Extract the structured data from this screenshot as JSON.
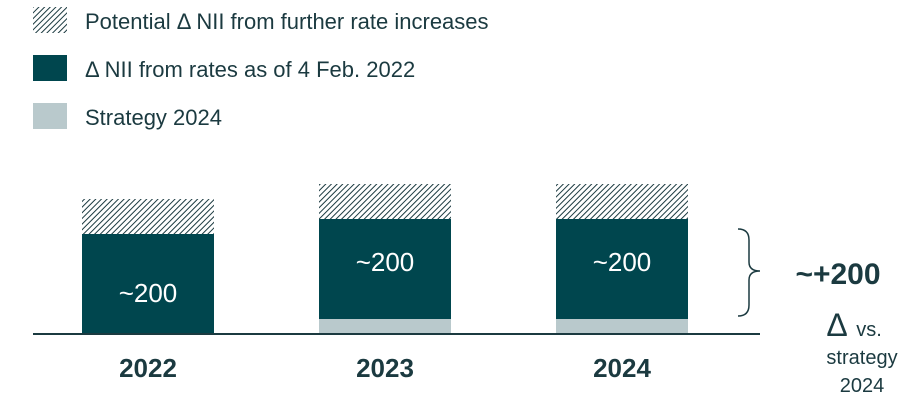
{
  "colors": {
    "potential": "#1b3a40",
    "nii": "#00464e",
    "strategy": "#b9c9cc",
    "text": "#1b3a40",
    "axis": "#1b3a40"
  },
  "chart_data": {
    "type": "bar",
    "stacked": true,
    "categories": [
      "2022",
      "2023",
      "2024"
    ],
    "series": [
      {
        "name": "Strategy 2024",
        "values": [
          0,
          15,
          15
        ],
        "pattern": "solid-light"
      },
      {
        "name": "Δ NII from rates as of 4 Feb. 2022",
        "values": [
          100,
          100,
          100
        ],
        "labels": [
          "~200",
          "~200",
          "~200"
        ],
        "pattern": "solid-dark"
      },
      {
        "name": "Potential Δ NII from further rates increases",
        "values": [
          35,
          35,
          35
        ],
        "pattern": "hatched"
      }
    ],
    "legend": {
      "placement": "top-left",
      "items": [
        {
          "label": "Potential Δ NII from further rate increases",
          "pattern": "hatched"
        },
        {
          "label": "Δ NII from rates as of 4 Feb. 2022",
          "pattern": "solid-dark"
        },
        {
          "label": "Strategy 2024",
          "pattern": "solid-light"
        }
      ]
    },
    "ylim": [
      0,
      160
    ],
    "grid": false,
    "annotation": {
      "value": "~+200",
      "symbol": "Δ",
      "sub1": "vs.",
      "sub2": "strategy",
      "sub3": "2024"
    }
  }
}
